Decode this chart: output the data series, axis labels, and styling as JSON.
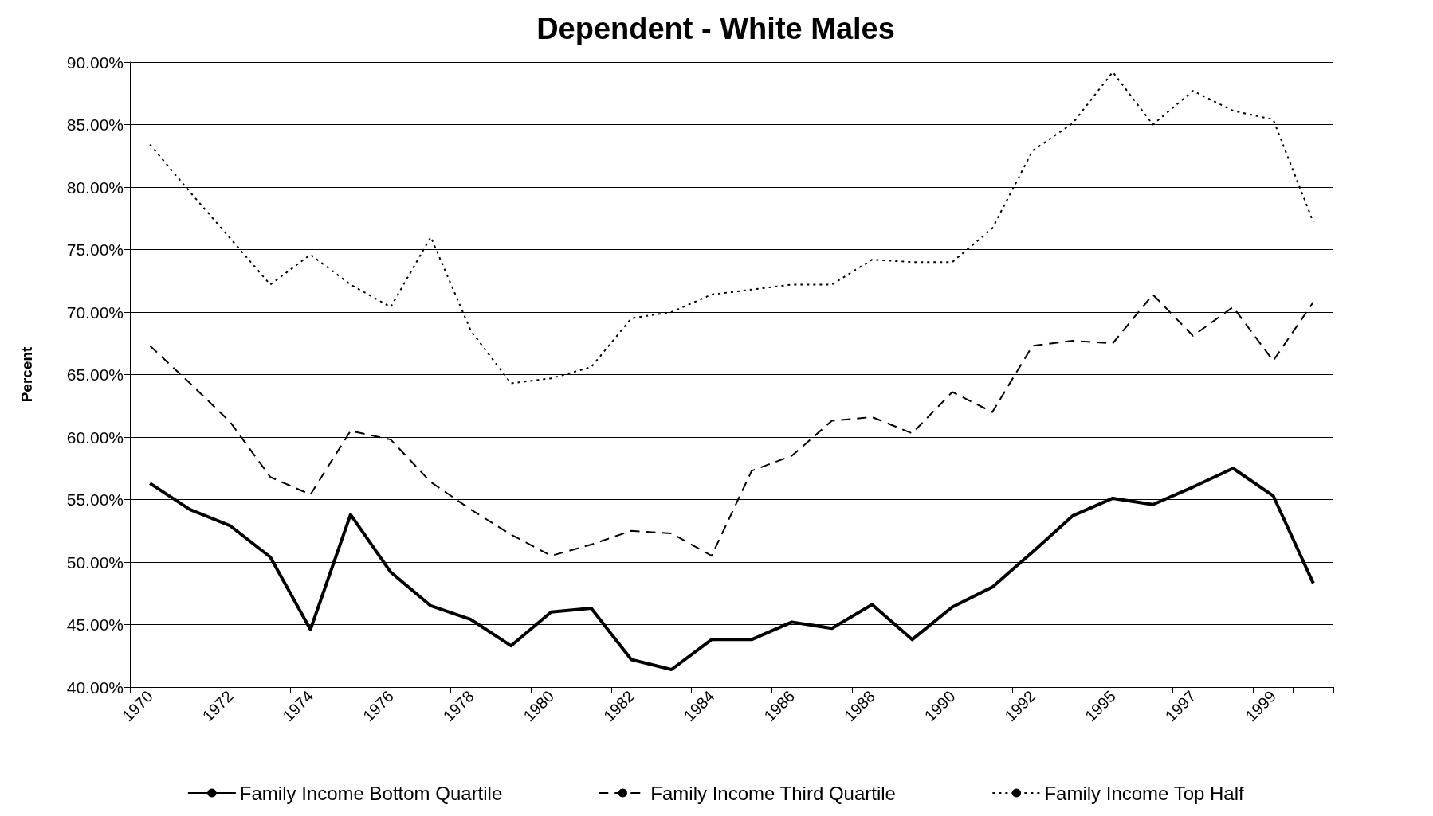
{
  "chart_data": {
    "type": "line",
    "title": "Dependent - White Males",
    "ylabel": "Percent",
    "categories": [
      "1970",
      null,
      "1972",
      null,
      "1974",
      null,
      "1976",
      null,
      "1978",
      null,
      "1980",
      null,
      "1982",
      null,
      "1984",
      null,
      "1986",
      null,
      "1988",
      null,
      "1990",
      null,
      "1992",
      null,
      "1995",
      null,
      "1997",
      null,
      "1999",
      null
    ],
    "series": [
      {
        "name": "Family Income Bottom Quartile",
        "color": "#000000",
        "line_style": "solid",
        "values": [
          56.3,
          54.2,
          52.9,
          50.4,
          44.6,
          53.8,
          49.2,
          46.5,
          45.4,
          43.3,
          46.0,
          46.3,
          42.2,
          41.4,
          43.8,
          43.8,
          45.2,
          44.7,
          46.6,
          43.8,
          46.4,
          48.0,
          50.8,
          53.7,
          55.1,
          54.6,
          56.0,
          57.5,
          55.3,
          48.3
        ]
      },
      {
        "name": "Family Income Third Quartile",
        "color": "#000000",
        "line_style": "dashed",
        "values": [
          67.3,
          64.3,
          61.2,
          56.8,
          55.4,
          60.5,
          59.8,
          56.4,
          54.2,
          52.2,
          50.5,
          51.4,
          52.5,
          52.3,
          50.5,
          57.3,
          58.5,
          61.3,
          61.6,
          60.3,
          63.6,
          62.0,
          67.3,
          67.7,
          67.5,
          71.4,
          68.1,
          70.4,
          66.1,
          70.8
        ]
      },
      {
        "name": "Family Income Top Half",
        "color": "#000000",
        "line_style": "dotted",
        "values": [
          83.4,
          79.6,
          75.9,
          72.2,
          74.6,
          72.2,
          70.4,
          76.0,
          68.5,
          64.3,
          64.7,
          65.6,
          69.5,
          70.0,
          71.4,
          71.8,
          72.2,
          72.2,
          74.2,
          74.0,
          74.0,
          76.7,
          82.9,
          85.1,
          89.2,
          85.0,
          87.7,
          86.1,
          85.4,
          77.2
        ]
      }
    ],
    "ylim": [
      40,
      90
    ],
    "yticks": [
      {
        "value": 40,
        "label": "40.00%"
      },
      {
        "value": 45,
        "label": "45.00%"
      },
      {
        "value": 50,
        "label": "50.00%"
      },
      {
        "value": 55,
        "label": "55.00%"
      },
      {
        "value": 60,
        "label": "60.00%"
      },
      {
        "value": 65,
        "label": "65.00%"
      },
      {
        "value": 70,
        "label": "70.00%"
      },
      {
        "value": 75,
        "label": "75.00%"
      },
      {
        "value": 80,
        "label": "80.00%"
      },
      {
        "value": 85,
        "label": "85.00%"
      },
      {
        "value": 90,
        "label": "90.00%"
      }
    ],
    "grid": "y",
    "legend": "bottom",
    "marker": "none"
  }
}
